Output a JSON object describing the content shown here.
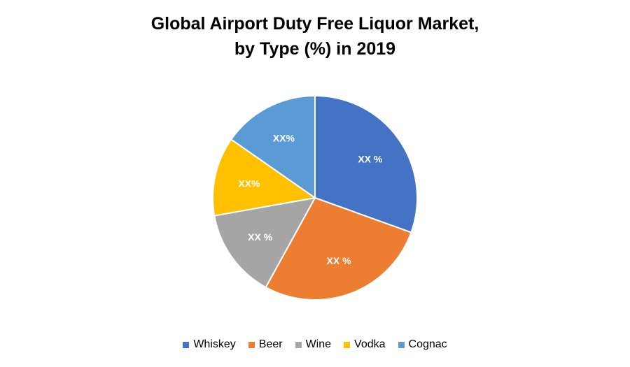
{
  "chart_data": {
    "type": "pie",
    "title_line1": "Global Airport Duty Free Liquor Market,",
    "title_line2": "by Type (%) in 2019",
    "categories": [
      "Whiskey",
      "Beer",
      "Wine",
      "Vodka",
      "Cognac"
    ],
    "values": [
      30.5,
      27.5,
      14.2,
      12.5,
      15.3
    ],
    "data_labels": [
      "XX %",
      "XX %",
      "XX %",
      "XX%",
      "XX%"
    ],
    "colors": [
      "#4472C4",
      "#ED7D31",
      "#A5A5A5",
      "#FFC000",
      "#5B9BD5"
    ],
    "start": "12 o'clock, clockwise",
    "legend_position": "bottom"
  }
}
